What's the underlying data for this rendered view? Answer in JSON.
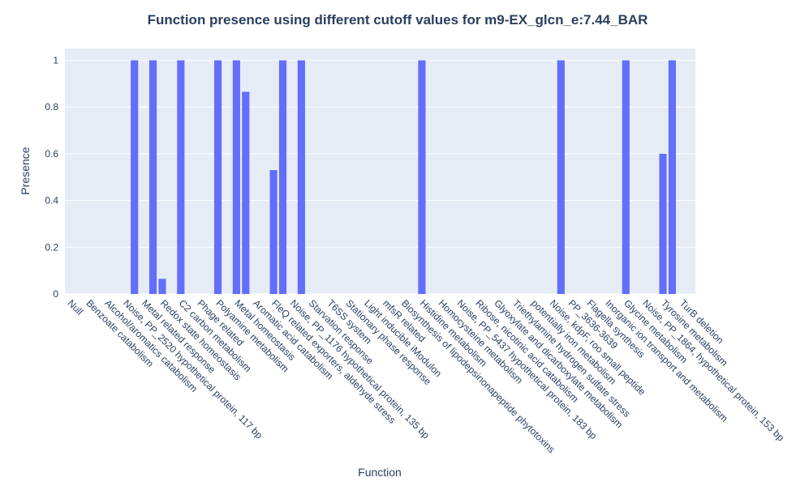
{
  "chart_data": {
    "type": "bar",
    "title": "Function presence using different cutoff values for m9-EX_glcn_e:7.44_BAR",
    "x_label": "Function",
    "y_label": "Presence",
    "categories": [
      "Null",
      null,
      "Benzoate catabolism",
      null,
      "Alcohol/aromatics catabolism",
      null,
      "Noise, PP_2520 hypothetical protein, 117 bp",
      null,
      "Metal related response",
      null,
      "Redox state homeostasis",
      null,
      "C2 carbon metabolism",
      null,
      "Phage related",
      null,
      "Polyamine metabolism",
      null,
      "Metal homeostasis",
      null,
      "Aromatic acid catabolism",
      null,
      "FleQ related exporters, aldehyde stress",
      null,
      "Noise, PP_1176 hypothetical protein, 135 bp",
      null,
      "Starvation response",
      null,
      "T6SS system",
      null,
      "Stationary phase response",
      null,
      "Light inducible iModulon",
      null,
      "mfsR related",
      null,
      "Biosynthesis of lipodepsinonapeptide phytotoxins",
      null,
      "Histidine metabolism",
      null,
      "Homocysteine metabolism",
      null,
      "Noise, PP_5437 hypothetical protein, 183 bp",
      null,
      "Ribose, nicotinic acid catabolism",
      null,
      "Glyoxylate and dicarboxylate metabolism",
      null,
      "Triethylamine hydrogen sulfate stress",
      null,
      "potentially iron metabolism",
      null,
      "Noise, kdpF, roo small peptide",
      null,
      "PP_3636-3639",
      null,
      "Flagella synthesis",
      null,
      "Inorganic ion transport and metabolism",
      null,
      "Glycine metabolism",
      null,
      "Noise, PP_1864, hypothetical protein, 153 bp",
      null,
      "Tyrosine metabolism",
      null,
      "TurB deletion",
      null
    ],
    "values": [
      0,
      0,
      0,
      0,
      0,
      0,
      0,
      1,
      0,
      1,
      0.065,
      0,
      1,
      0,
      0,
      0,
      1,
      0,
      1,
      0.865,
      0,
      0,
      0.53,
      1,
      0,
      1,
      0,
      0,
      0,
      0,
      0,
      0,
      0,
      0,
      0,
      0,
      0,
      0,
      1,
      0,
      0,
      0,
      0,
      0,
      0,
      0,
      0,
      0,
      0,
      0,
      0,
      0,
      0,
      1,
      0,
      0,
      0,
      0,
      0,
      0,
      1,
      0,
      0,
      0,
      0.6,
      1,
      0,
      0
    ],
    "color": "#636efa",
    "ylim": [
      0,
      1.05
    ],
    "yticks": [
      0,
      0.2,
      0.4,
      0.6,
      0.8,
      1
    ],
    "grid": true
  }
}
